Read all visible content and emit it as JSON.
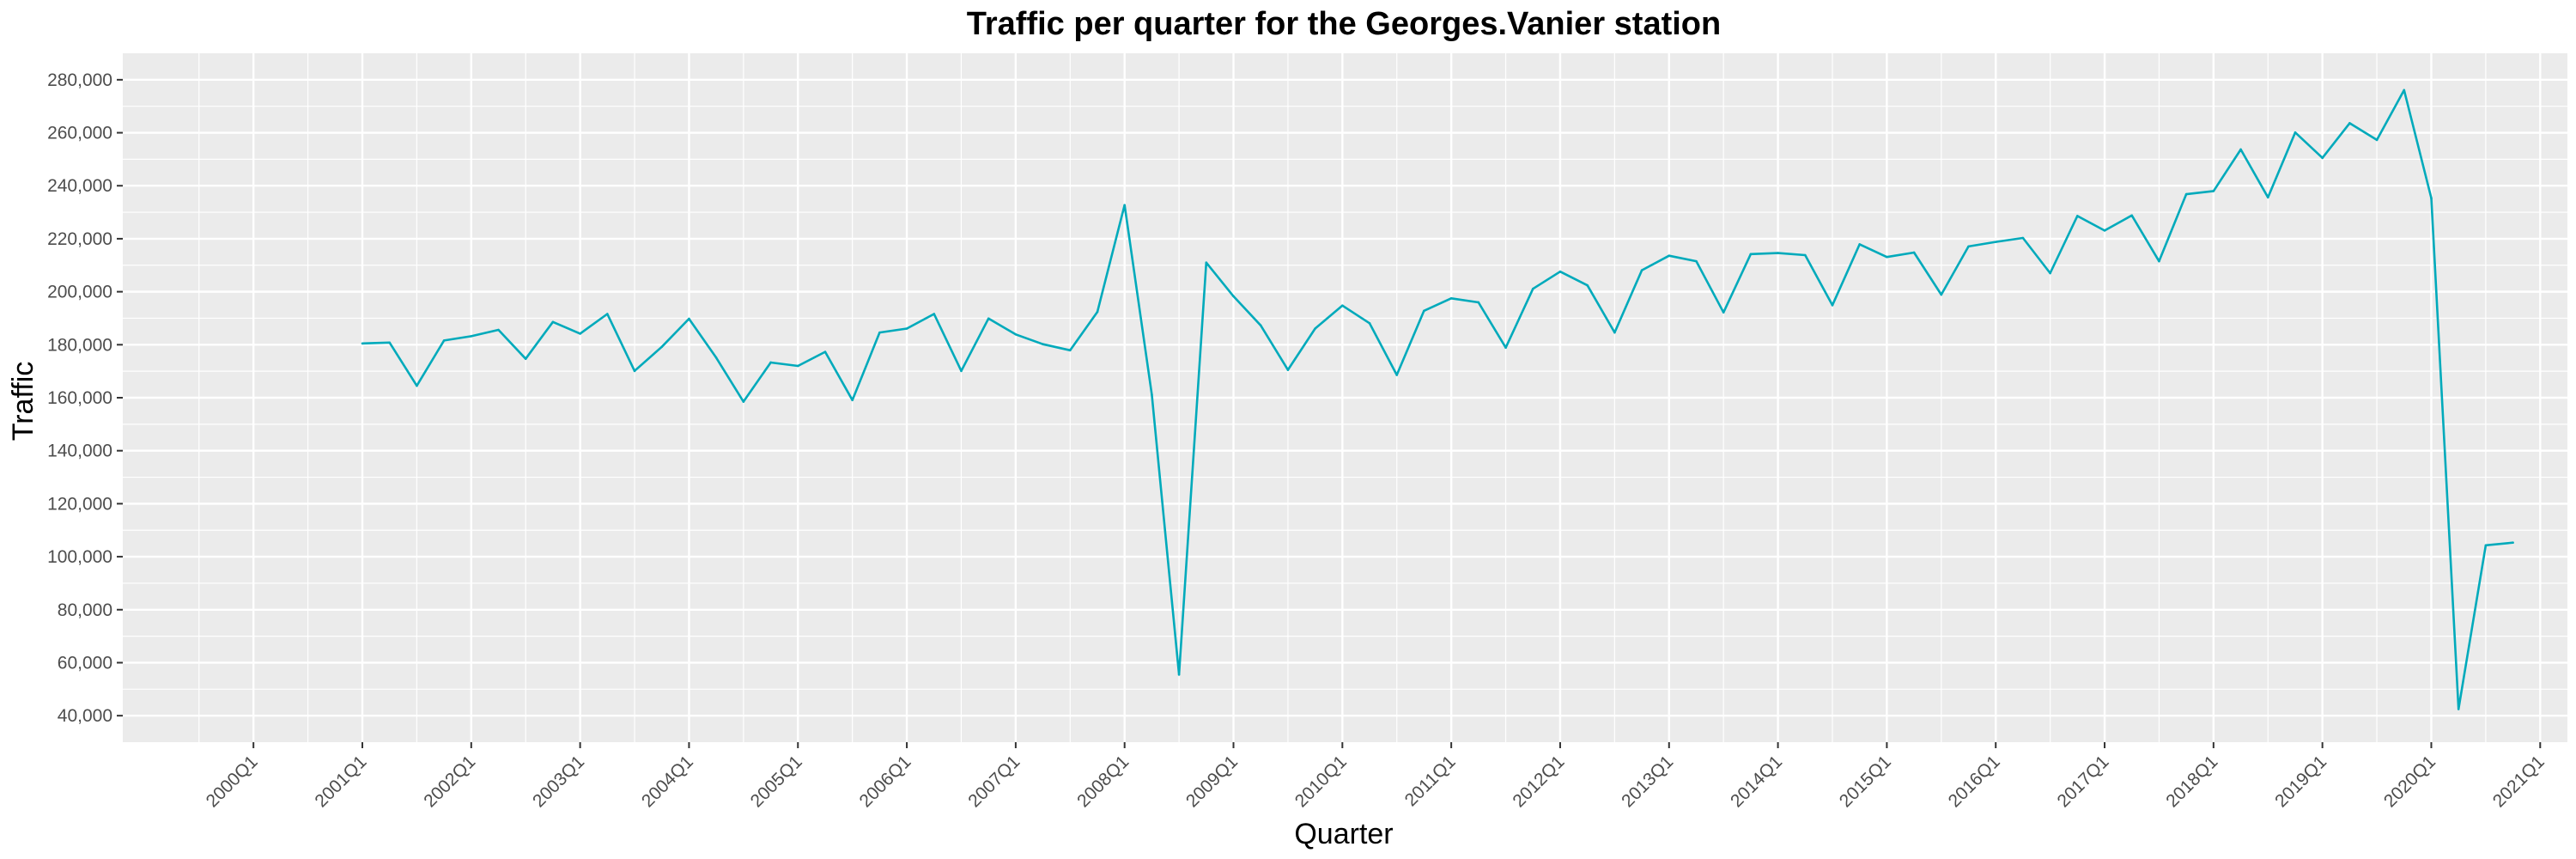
{
  "chart_data": {
    "type": "line",
    "title": "Traffic per quarter for the Georges.Vanier station",
    "xlabel": "Quarter",
    "ylabel": "Traffic",
    "ylim": [
      30000,
      290000
    ],
    "grid": true,
    "legend": "none",
    "colors": {
      "line": "#00aabb",
      "panel": "#ebebeb",
      "grid": "#ffffff"
    },
    "x_ticks": [
      "2000Q1",
      "2001Q1",
      "2002Q1",
      "2003Q1",
      "2004Q1",
      "2005Q1",
      "2006Q1",
      "2007Q1",
      "2008Q1",
      "2009Q1",
      "2010Q1",
      "2011Q1",
      "2012Q1",
      "2013Q1",
      "2014Q1",
      "2015Q1",
      "2016Q1",
      "2017Q1",
      "2018Q1",
      "2019Q1",
      "2020Q1",
      "2021Q1"
    ],
    "y_ticks": [
      "40,000",
      "60,000",
      "80,000",
      "100,000",
      "120,000",
      "140,000",
      "160,000",
      "180,000",
      "200,000",
      "220,000",
      "240,000",
      "260,000",
      "280,000"
    ],
    "y_tick_values": [
      40000,
      60000,
      80000,
      100000,
      120000,
      140000,
      160000,
      180000,
      200000,
      220000,
      240000,
      260000,
      280000
    ],
    "x": [
      "2001Q1",
      "2001Q2",
      "2001Q3",
      "2001Q4",
      "2002Q1",
      "2002Q2",
      "2002Q3",
      "2002Q4",
      "2003Q1",
      "2003Q2",
      "2003Q3",
      "2003Q4",
      "2004Q1",
      "2004Q2",
      "2004Q3",
      "2004Q4",
      "2005Q1",
      "2005Q2",
      "2005Q3",
      "2005Q4",
      "2006Q1",
      "2006Q2",
      "2006Q3",
      "2006Q4",
      "2007Q1",
      "2007Q2",
      "2007Q3",
      "2007Q4",
      "2008Q1",
      "2008Q2",
      "2008Q3",
      "2008Q4",
      "2009Q1",
      "2009Q2",
      "2009Q3",
      "2009Q4",
      "2010Q1",
      "2010Q2",
      "2010Q3",
      "2010Q4",
      "2011Q1",
      "2011Q2",
      "2011Q3",
      "2011Q4",
      "2012Q1",
      "2012Q2",
      "2012Q3",
      "2012Q4",
      "2013Q1",
      "2013Q2",
      "2013Q3",
      "2013Q4",
      "2014Q1",
      "2014Q2",
      "2014Q3",
      "2014Q4",
      "2015Q1",
      "2015Q2",
      "2015Q3",
      "2015Q4",
      "2016Q1",
      "2016Q2",
      "2016Q3",
      "2016Q4",
      "2017Q1",
      "2017Q2",
      "2017Q3",
      "2017Q4",
      "2018Q1",
      "2018Q2",
      "2018Q3",
      "2018Q4",
      "2019Q1",
      "2019Q2",
      "2019Q3",
      "2019Q4",
      "2020Q1",
      "2020Q2",
      "2020Q3",
      "2020Q4"
    ],
    "series": [
      {
        "values": [
          180500,
          180800,
          164500,
          181600,
          183200,
          185600,
          174700,
          188600,
          184200,
          191600,
          170100,
          179200,
          189800,
          175100,
          158500,
          173300,
          172000,
          177300,
          159100,
          184600,
          186100,
          191600,
          170100,
          189900,
          183900,
          180200,
          177900,
          192400,
          232700,
          161200,
          55500,
          211000,
          198300,
          187300,
          170500,
          186100,
          194800,
          188100,
          168600,
          192800,
          197500,
          196000,
          178900,
          201100,
          207600,
          202400,
          184600,
          208100,
          213600,
          211500,
          192200,
          214200,
          214600,
          213800,
          194900,
          217900,
          213100,
          214800,
          198900,
          217100,
          218800,
          220300,
          207000,
          228600,
          223100,
          228800,
          211500,
          236800,
          238000,
          253700,
          235600,
          260100,
          250500,
          263600,
          257300,
          276100,
          235300,
          42500,
          104300,
          105300
        ]
      }
    ]
  }
}
